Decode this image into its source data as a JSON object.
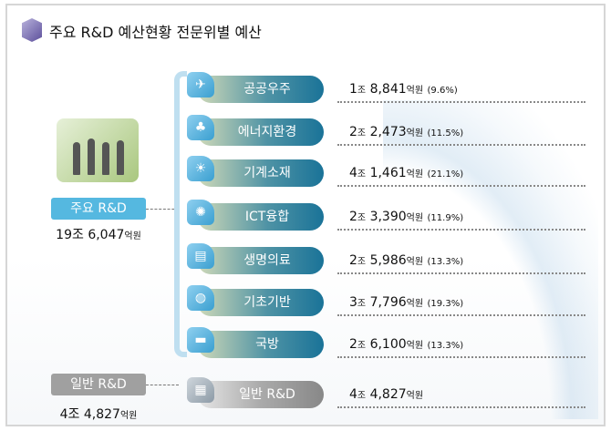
{
  "title": "주요 R&D 예산현황 전문위별 예산",
  "main": {
    "label": "주요 R&D",
    "total_num": "19조 6,047",
    "unit": "억원"
  },
  "general": {
    "label": "일반 R&D",
    "total_num": "4조 4,827",
    "unit": "억원"
  },
  "rows": [
    {
      "icon": "satellite-icon",
      "glyph": "✈",
      "label": "공공우주",
      "jo": "1",
      "jo_unit": "조",
      "amount": "8,841",
      "unit": "억원",
      "pct": "(9.6%)"
    },
    {
      "icon": "plant-hands-icon",
      "glyph": "♣",
      "label": "에너지환경",
      "jo": "2",
      "jo_unit": "조",
      "amount": "2,473",
      "unit": "억원",
      "pct": "(11.5%)"
    },
    {
      "icon": "lightbulb-icon",
      "glyph": "☀",
      "label": "기계소재",
      "jo": "4",
      "jo_unit": "조",
      "amount": "1,461",
      "unit": "억원",
      "pct": "(21.1%)"
    },
    {
      "icon": "network-icon",
      "glyph": "✺",
      "label": "ICT융합",
      "jo": "2",
      "jo_unit": "조",
      "amount": "3,390",
      "unit": "억원",
      "pct": "(11.9%)"
    },
    {
      "icon": "monitor-icon",
      "glyph": "▤",
      "label": "생명의료",
      "jo": "2",
      "jo_unit": "조",
      "amount": "5,986",
      "unit": "억원",
      "pct": "(13.3%)"
    },
    {
      "icon": "globe-hand-icon",
      "glyph": "◍",
      "label": "기초기반",
      "jo": "3",
      "jo_unit": "조",
      "amount": "7,796",
      "unit": "억원",
      "pct": "(19.3%)"
    },
    {
      "icon": "tank-icon",
      "glyph": "▬",
      "label": "국방",
      "jo": "2",
      "jo_unit": "조",
      "amount": "6,100",
      "unit": "억원",
      "pct": "(13.3%)"
    }
  ],
  "gen_row": {
    "icon": "clipboard-icon",
    "glyph": "▦",
    "label": "일반 R&D",
    "jo": "4",
    "jo_unit": "조",
    "amount": "4,827",
    "unit": "억원"
  }
}
